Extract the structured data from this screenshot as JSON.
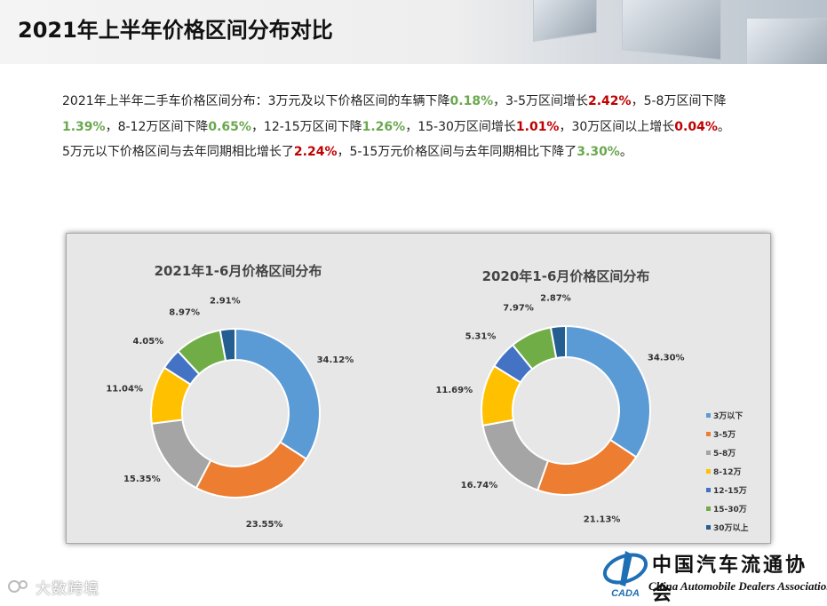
{
  "header": {
    "title": "2021年上半年价格区间分布对比"
  },
  "summary": {
    "p1": {
      "t1": "2021年上半年二手车价格区间分布：3万元及以下价格区间的车辆下降",
      "v1": "0.18%",
      "t2": "，3-5万区间增长",
      "v2": "2.42%",
      "t3": "，5-8万区间下降",
      "v3": "1.39%",
      "t4": "，8-12万区间下降",
      "v4": "0.65%",
      "t5": "，12-15万区间下降",
      "v5": "1.26%",
      "t6": "，15-30万区间增长",
      "v6": "1.01%",
      "t7": "，30万区间以上增长",
      "v7": "0.04%",
      "t8": "。"
    },
    "p2": {
      "t1": "5万元以下价格区间与去年同期相比增长了",
      "v1": "2.24%",
      "t2": "，5-15万元价格区间与去年同期相比下降了",
      "v2": "3.30%",
      "t3": "。"
    }
  },
  "chart_data": [
    {
      "type": "pie",
      "title": "2021年1-6月价格区间分布",
      "categories": [
        "3万以下",
        "3-5万",
        "5-8万",
        "8-12万",
        "12-15万",
        "15-30万",
        "30万以上"
      ],
      "values": [
        34.12,
        23.55,
        15.35,
        11.04,
        4.05,
        8.97,
        2.91
      ],
      "labels": [
        "34.12%",
        "23.55%",
        "15.35%",
        "11.04%",
        "4.05%",
        "8.97%",
        "2.91%"
      ]
    },
    {
      "type": "pie",
      "title": "2020年1-6月价格区间分布",
      "categories": [
        "3万以下",
        "3-5万",
        "5-8万",
        "8-12万",
        "12-15万",
        "15-30万",
        "30万以上"
      ],
      "values": [
        34.3,
        21.13,
        16.74,
        11.69,
        5.31,
        7.97,
        2.87
      ],
      "labels": [
        "34.30%",
        "21.13%",
        "16.74%",
        "11.69%",
        "5.31%",
        "7.97%",
        "2.87%"
      ]
    }
  ],
  "legend": {
    "placement": "right",
    "items": [
      "3万以下",
      "3-5万",
      "5-8万",
      "8-12万",
      "12-15万",
      "15-30万",
      "30万以上"
    ]
  },
  "colors": [
    "#5b9bd5",
    "#ed7d31",
    "#a5a5a5",
    "#ffc000",
    "#4472c4",
    "#70ad47",
    "#255e91"
  ],
  "watermark": {
    "text": "大数跨境"
  },
  "logo": {
    "cn": "中国汽车流通协会",
    "en": "China Automobile Dealers Association",
    "abbr": "CADA"
  }
}
